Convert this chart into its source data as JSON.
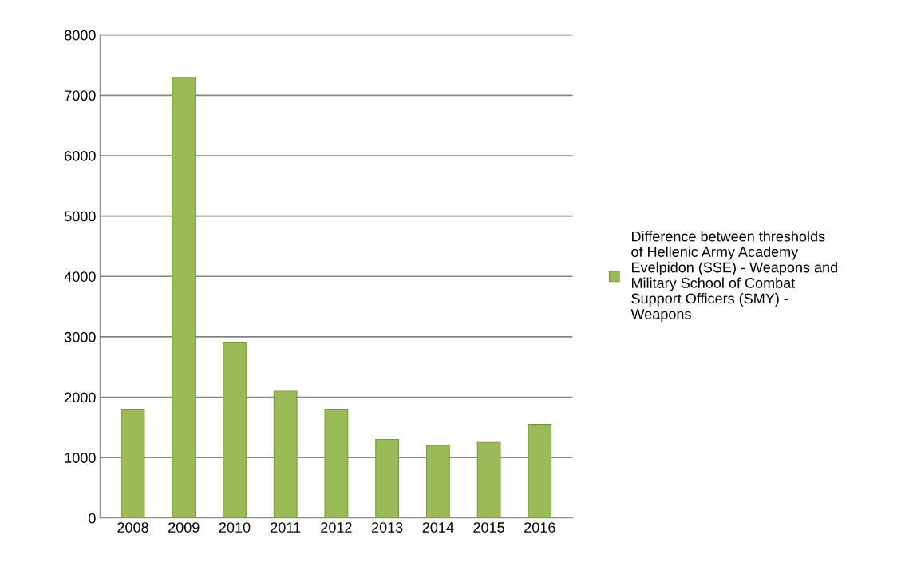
{
  "chart_data": {
    "type": "bar",
    "categories": [
      "2008",
      "2009",
      "2010",
      "2011",
      "2012",
      "2013",
      "2014",
      "2015",
      "2016"
    ],
    "series": [
      {
        "name": "Difference between thresholds of Hellenic Army Academy Evelpidon (SSE) - Weapons and Military School of Combat Support Officers (SMY) - Weapons",
        "color": "#9bbb59",
        "values": [
          1800,
          7300,
          2900,
          2100,
          1800,
          1300,
          1200,
          1250,
          1550
        ]
      }
    ],
    "ylim": [
      0,
      8000
    ],
    "yticks": [
      0,
      1000,
      2000,
      3000,
      4000,
      5000,
      6000,
      7000,
      8000
    ],
    "grid": "y",
    "legend": "right"
  }
}
